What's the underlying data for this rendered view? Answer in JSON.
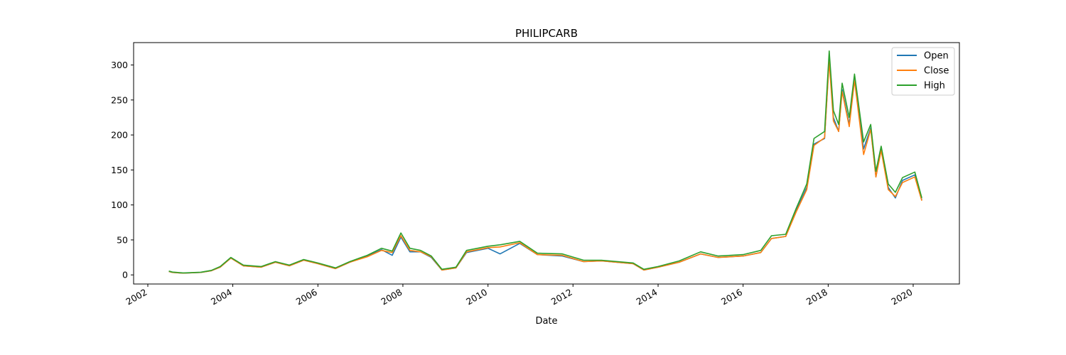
{
  "chart_data": {
    "type": "line",
    "title": "PHILIPCARB",
    "xlabel": "Date",
    "ylabel": "",
    "x_axis_type": "date",
    "xlim": [
      "2001-09-01",
      "2021-02-01"
    ],
    "ylim": [
      -13,
      332
    ],
    "x_ticks": [
      "2002",
      "2004",
      "2006",
      "2008",
      "2010",
      "2012",
      "2014",
      "2016",
      "2018",
      "2020"
    ],
    "y_ticks": [
      0,
      50,
      100,
      150,
      200,
      250,
      300
    ],
    "grid": false,
    "legend_position": "top-right",
    "series": [
      {
        "name": "Open",
        "color": "#1f77b4",
        "points": [
          [
            "2002-07-01",
            5
          ],
          [
            "2002-08-01",
            3.5
          ],
          [
            "2002-11-01",
            2.5
          ],
          [
            "2003-04-01",
            3.5
          ],
          [
            "2003-07-01",
            6
          ],
          [
            "2003-09-15",
            11
          ],
          [
            "2003-12-15",
            24
          ],
          [
            "2004-04-01",
            13
          ],
          [
            "2004-09-01",
            11
          ],
          [
            "2005-01-01",
            18
          ],
          [
            "2005-05-01",
            13
          ],
          [
            "2005-09-01",
            21
          ],
          [
            "2006-01-01",
            16
          ],
          [
            "2006-06-01",
            9
          ],
          [
            "2006-10-01",
            18
          ],
          [
            "2007-03-01",
            27
          ],
          [
            "2007-07-01",
            36
          ],
          [
            "2007-10-01",
            28
          ],
          [
            "2007-12-15",
            54
          ],
          [
            "2008-03-01",
            33
          ],
          [
            "2008-06-01",
            33
          ],
          [
            "2008-09-01",
            25
          ],
          [
            "2008-12-01",
            7
          ],
          [
            "2009-04-01",
            10
          ],
          [
            "2009-07-01",
            32
          ],
          [
            "2010-01-01",
            38
          ],
          [
            "2010-04-15",
            30
          ],
          [
            "2010-10-01",
            45
          ],
          [
            "2011-03-01",
            29
          ],
          [
            "2011-10-01",
            27
          ],
          [
            "2012-04-01",
            19
          ],
          [
            "2012-09-01",
            20
          ],
          [
            "2013-06-01",
            16
          ],
          [
            "2013-09-01",
            7
          ],
          [
            "2014-01-01",
            11
          ],
          [
            "2014-07-01",
            18
          ],
          [
            "2015-01-01",
            30
          ],
          [
            "2015-06-01",
            25
          ],
          [
            "2016-01-01",
            27
          ],
          [
            "2016-06-01",
            32
          ],
          [
            "2016-09-01",
            52
          ],
          [
            "2017-01-01",
            55
          ],
          [
            "2017-04-01",
            92
          ],
          [
            "2017-07-01",
            125
          ],
          [
            "2017-09-01",
            187
          ],
          [
            "2017-12-01",
            195
          ],
          [
            "2018-01-10",
            310
          ],
          [
            "2018-02-15",
            225
          ],
          [
            "2018-04-01",
            205
          ],
          [
            "2018-05-01",
            265
          ],
          [
            "2018-07-01",
            215
          ],
          [
            "2018-08-15",
            280
          ],
          [
            "2018-11-01",
            180
          ],
          [
            "2019-01-01",
            210
          ],
          [
            "2019-02-15",
            140
          ],
          [
            "2019-04-01",
            180
          ],
          [
            "2019-06-01",
            125
          ],
          [
            "2019-08-01",
            110
          ],
          [
            "2019-10-01",
            135
          ],
          [
            "2020-01-15",
            143
          ],
          [
            "2020-03-15",
            107
          ]
        ]
      },
      {
        "name": "Close",
        "color": "#ff7f0e",
        "points": [
          [
            "2002-07-01",
            5
          ],
          [
            "2002-08-01",
            3.5
          ],
          [
            "2002-11-01",
            2.5
          ],
          [
            "2003-04-01",
            3.5
          ],
          [
            "2003-07-01",
            6
          ],
          [
            "2003-09-15",
            11
          ],
          [
            "2003-12-15",
            24
          ],
          [
            "2004-04-01",
            13
          ],
          [
            "2004-09-01",
            11
          ],
          [
            "2005-01-01",
            18
          ],
          [
            "2005-05-01",
            13
          ],
          [
            "2005-09-01",
            21
          ],
          [
            "2006-01-01",
            16
          ],
          [
            "2006-06-01",
            9
          ],
          [
            "2006-10-01",
            18
          ],
          [
            "2007-03-01",
            26
          ],
          [
            "2007-07-01",
            35
          ],
          [
            "2007-10-01",
            32
          ],
          [
            "2007-12-15",
            56
          ],
          [
            "2008-03-01",
            35
          ],
          [
            "2008-06-01",
            33
          ],
          [
            "2008-09-01",
            26
          ],
          [
            "2008-12-01",
            7
          ],
          [
            "2009-04-01",
            10
          ],
          [
            "2009-07-01",
            33
          ],
          [
            "2010-01-01",
            39
          ],
          [
            "2010-04-15",
            40
          ],
          [
            "2010-10-01",
            46
          ],
          [
            "2011-03-01",
            29
          ],
          [
            "2011-10-01",
            28
          ],
          [
            "2012-04-01",
            19
          ],
          [
            "2012-09-01",
            20
          ],
          [
            "2013-06-01",
            16
          ],
          [
            "2013-09-01",
            7
          ],
          [
            "2014-01-01",
            11
          ],
          [
            "2014-07-01",
            18
          ],
          [
            "2015-01-01",
            30
          ],
          [
            "2015-06-01",
            25
          ],
          [
            "2016-01-01",
            27
          ],
          [
            "2016-06-01",
            32
          ],
          [
            "2016-09-01",
            52
          ],
          [
            "2017-01-01",
            55
          ],
          [
            "2017-04-01",
            90
          ],
          [
            "2017-07-01",
            122
          ],
          [
            "2017-09-01",
            185
          ],
          [
            "2017-12-01",
            196
          ],
          [
            "2018-01-10",
            305
          ],
          [
            "2018-02-15",
            220
          ],
          [
            "2018-04-01",
            205
          ],
          [
            "2018-05-01",
            262
          ],
          [
            "2018-07-01",
            212
          ],
          [
            "2018-08-15",
            278
          ],
          [
            "2018-11-01",
            172
          ],
          [
            "2019-01-01",
            208
          ],
          [
            "2019-02-15",
            140
          ],
          [
            "2019-04-01",
            178
          ],
          [
            "2019-06-01",
            122
          ],
          [
            "2019-08-01",
            112
          ],
          [
            "2019-10-01",
            132
          ],
          [
            "2020-01-15",
            140
          ],
          [
            "2020-03-15",
            106
          ]
        ]
      },
      {
        "name": "High",
        "color": "#2ca02c",
        "points": [
          [
            "2002-07-01",
            5.5
          ],
          [
            "2002-08-01",
            4
          ],
          [
            "2002-11-01",
            2.8
          ],
          [
            "2003-04-01",
            3.8
          ],
          [
            "2003-07-01",
            6.5
          ],
          [
            "2003-09-15",
            12
          ],
          [
            "2003-12-15",
            25
          ],
          [
            "2004-04-01",
            14
          ],
          [
            "2004-09-01",
            12
          ],
          [
            "2005-01-01",
            19
          ],
          [
            "2005-05-01",
            14
          ],
          [
            "2005-09-01",
            22
          ],
          [
            "2006-01-01",
            17
          ],
          [
            "2006-06-01",
            10
          ],
          [
            "2006-10-01",
            19
          ],
          [
            "2007-03-01",
            28
          ],
          [
            "2007-07-01",
            38
          ],
          [
            "2007-10-01",
            34
          ],
          [
            "2007-12-15",
            60
          ],
          [
            "2008-03-01",
            38
          ],
          [
            "2008-06-01",
            35
          ],
          [
            "2008-09-01",
            27
          ],
          [
            "2008-12-01",
            8
          ],
          [
            "2009-04-01",
            11
          ],
          [
            "2009-07-01",
            35
          ],
          [
            "2010-01-01",
            41
          ],
          [
            "2010-04-15",
            43
          ],
          [
            "2010-10-01",
            48
          ],
          [
            "2011-03-01",
            31
          ],
          [
            "2011-10-01",
            30
          ],
          [
            "2012-04-01",
            21
          ],
          [
            "2012-09-01",
            21
          ],
          [
            "2013-06-01",
            17
          ],
          [
            "2013-09-01",
            8
          ],
          [
            "2014-01-01",
            12
          ],
          [
            "2014-07-01",
            20
          ],
          [
            "2015-01-01",
            33
          ],
          [
            "2015-06-01",
            27
          ],
          [
            "2016-01-01",
            29
          ],
          [
            "2016-06-01",
            35
          ],
          [
            "2016-09-01",
            56
          ],
          [
            "2017-01-01",
            58
          ],
          [
            "2017-04-01",
            95
          ],
          [
            "2017-07-01",
            130
          ],
          [
            "2017-09-01",
            195
          ],
          [
            "2017-12-01",
            205
          ],
          [
            "2018-01-10",
            320
          ],
          [
            "2018-02-15",
            235
          ],
          [
            "2018-04-01",
            215
          ],
          [
            "2018-05-01",
            274
          ],
          [
            "2018-07-01",
            225
          ],
          [
            "2018-08-15",
            287
          ],
          [
            "2018-11-01",
            190
          ],
          [
            "2019-01-01",
            215
          ],
          [
            "2019-02-15",
            148
          ],
          [
            "2019-04-01",
            184
          ],
          [
            "2019-06-01",
            130
          ],
          [
            "2019-08-01",
            118
          ],
          [
            "2019-10-01",
            139
          ],
          [
            "2020-01-15",
            147
          ],
          [
            "2020-03-15",
            110
          ]
        ]
      }
    ]
  }
}
